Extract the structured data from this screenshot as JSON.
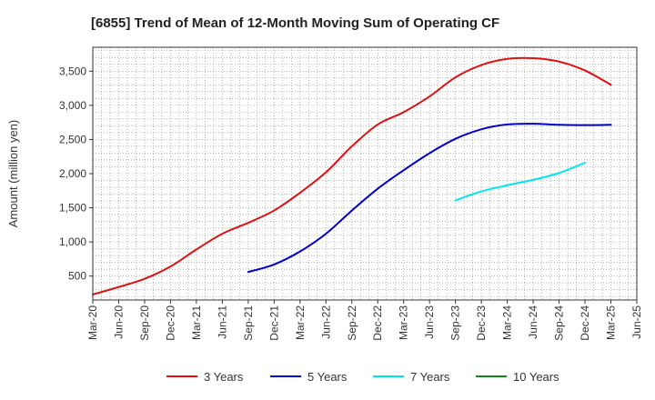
{
  "chart_data": {
    "type": "line",
    "title": "[6855]  Trend of Mean of 12-Month Moving Sum of Operating CF",
    "xlabel": "",
    "ylabel": "Amount (million yen)",
    "ylim": [
      150,
      3850
    ],
    "yticks": [
      500,
      1000,
      1500,
      2000,
      2500,
      3000,
      3500
    ],
    "ytick_labels": [
      "500",
      "1,000",
      "1,500",
      "2,000",
      "2,500",
      "3,000",
      "3,500"
    ],
    "x_start": "Mar-20",
    "x_months_span": 63,
    "xtick_labels": [
      "Mar-20",
      "Jun-20",
      "Sep-20",
      "Dec-20",
      "Mar-21",
      "Jun-21",
      "Sep-21",
      "Dec-21",
      "Mar-22",
      "Jun-22",
      "Sep-22",
      "Dec-22",
      "Mar-23",
      "Jun-23",
      "Sep-23",
      "Dec-23",
      "Mar-24",
      "Jun-24",
      "Sep-24",
      "Dec-24",
      "Mar-25",
      "Jun-25"
    ],
    "grid": true,
    "legend_position": "bottom",
    "series": [
      {
        "name": "3 Years",
        "color": "#dd1111",
        "start_month_index": 0,
        "quarterly_values": [
          230,
          340,
          460,
          640,
          890,
          1120,
          1280,
          1460,
          1720,
          2020,
          2400,
          2720,
          2900,
          3130,
          3410,
          3590,
          3680,
          3690,
          3640,
          3510,
          3300
        ]
      },
      {
        "name": "5 Years",
        "color": "#0000cc",
        "start_month_index": 18,
        "quarterly_values": [
          560,
          670,
          860,
          1120,
          1460,
          1780,
          2050,
          2300,
          2510,
          2650,
          2720,
          2730,
          2715,
          2710,
          2715
        ]
      },
      {
        "name": "7 Years",
        "color": "#00e5ee",
        "start_month_index": 42,
        "quarterly_values": [
          1610,
          1740,
          1830,
          1910,
          2010,
          2160
        ]
      },
      {
        "name": "10 Years",
        "color": "#118811",
        "start_month_index": null,
        "quarterly_values": []
      }
    ]
  }
}
